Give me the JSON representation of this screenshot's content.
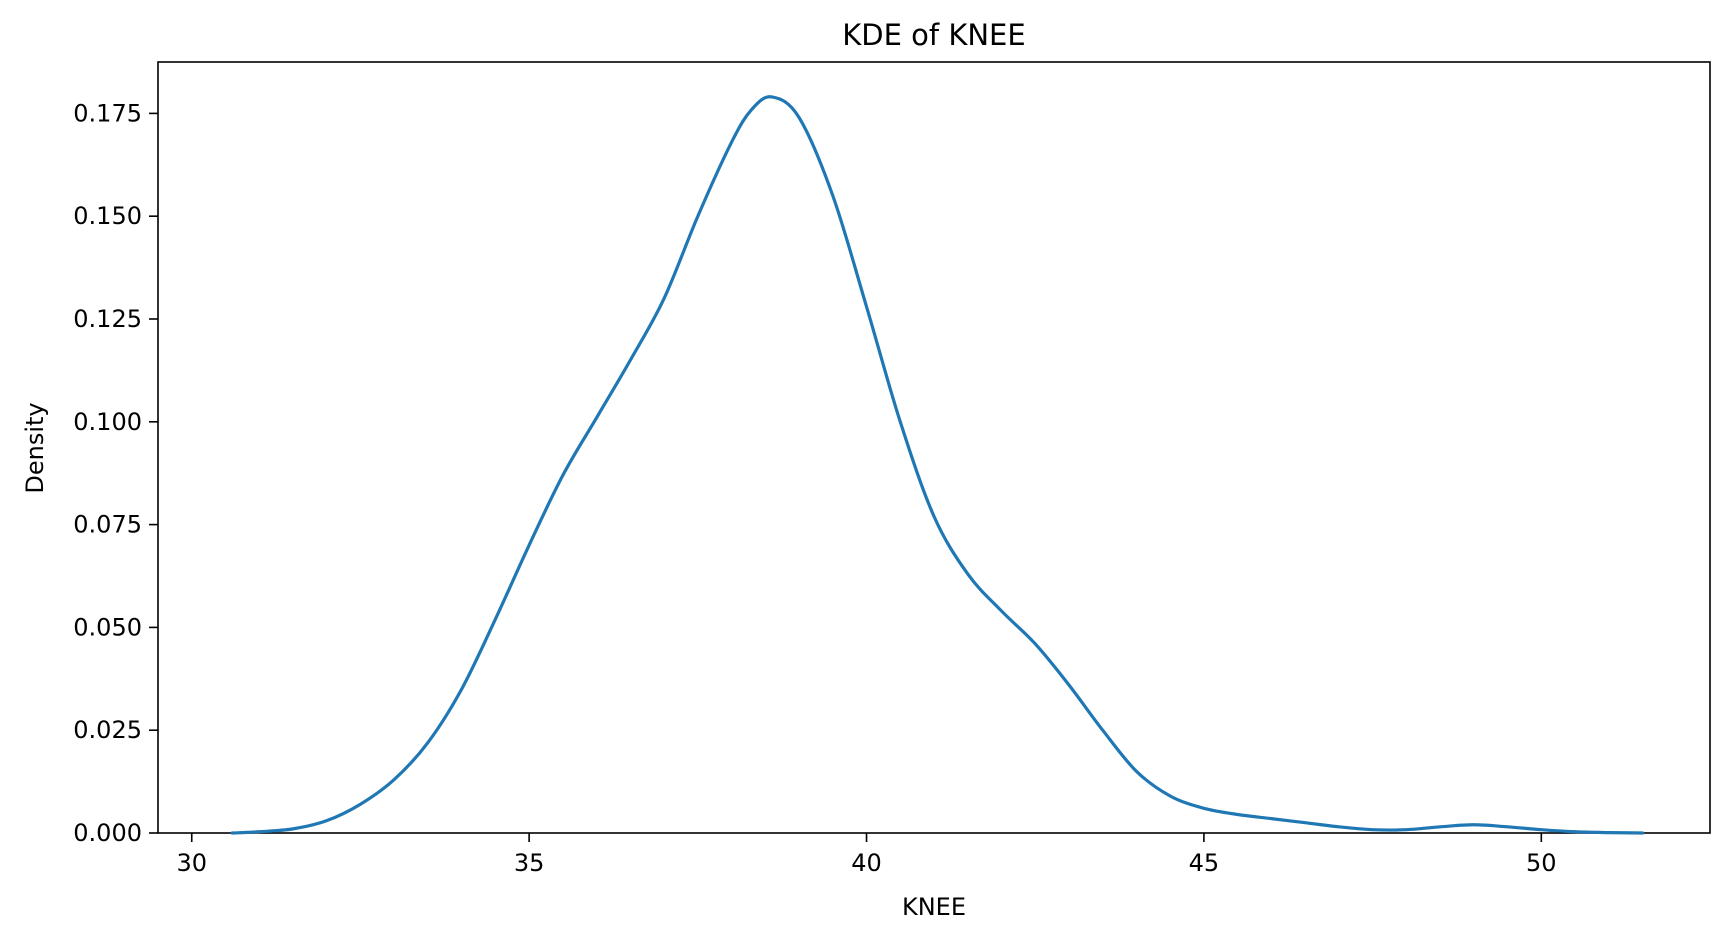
{
  "chart_data": {
    "type": "line",
    "title": "KDE of KNEE",
    "xlabel": "KNEE",
    "ylabel": "Density",
    "xlim": [
      29.5,
      52.5
    ],
    "ylim": [
      0.0,
      0.1875
    ],
    "x_ticks": [
      {
        "value": 30,
        "label": "30"
      },
      {
        "value": 35,
        "label": "35"
      },
      {
        "value": 40,
        "label": "40"
      },
      {
        "value": 45,
        "label": "45"
      },
      {
        "value": 50,
        "label": "50"
      }
    ],
    "y_ticks": [
      {
        "value": 0.0,
        "label": "0.000"
      },
      {
        "value": 0.025,
        "label": "0.025"
      },
      {
        "value": 0.05,
        "label": "0.050"
      },
      {
        "value": 0.075,
        "label": "0.075"
      },
      {
        "value": 0.1,
        "label": "0.100"
      },
      {
        "value": 0.125,
        "label": "0.125"
      },
      {
        "value": 0.15,
        "label": "0.150"
      },
      {
        "value": 0.175,
        "label": "0.175"
      }
    ],
    "grid": false,
    "series": [
      {
        "color": "#1f77b4",
        "x": [
          30.6,
          31.0,
          31.5,
          32.0,
          32.5,
          33.0,
          33.5,
          34.0,
          34.5,
          35.0,
          35.5,
          36.0,
          36.5,
          37.0,
          37.5,
          38.0,
          38.3,
          38.6,
          39.0,
          39.5,
          40.0,
          40.5,
          41.0,
          41.5,
          42.0,
          42.5,
          43.0,
          43.5,
          44.0,
          44.5,
          45.0,
          45.5,
          46.0,
          46.5,
          47.0,
          47.5,
          48.0,
          48.5,
          49.0,
          49.5,
          50.0,
          50.5,
          51.0,
          51.5
        ],
        "y": [
          0.0,
          0.0003,
          0.001,
          0.003,
          0.007,
          0.013,
          0.022,
          0.035,
          0.052,
          0.07,
          0.087,
          0.101,
          0.115,
          0.13,
          0.15,
          0.168,
          0.176,
          0.179,
          0.174,
          0.155,
          0.128,
          0.1,
          0.077,
          0.063,
          0.054,
          0.046,
          0.036,
          0.025,
          0.015,
          0.009,
          0.006,
          0.0045,
          0.0035,
          0.0025,
          0.0015,
          0.0008,
          0.0008,
          0.0015,
          0.002,
          0.0015,
          0.0008,
          0.0003,
          0.0001,
          0.0
        ]
      }
    ]
  }
}
